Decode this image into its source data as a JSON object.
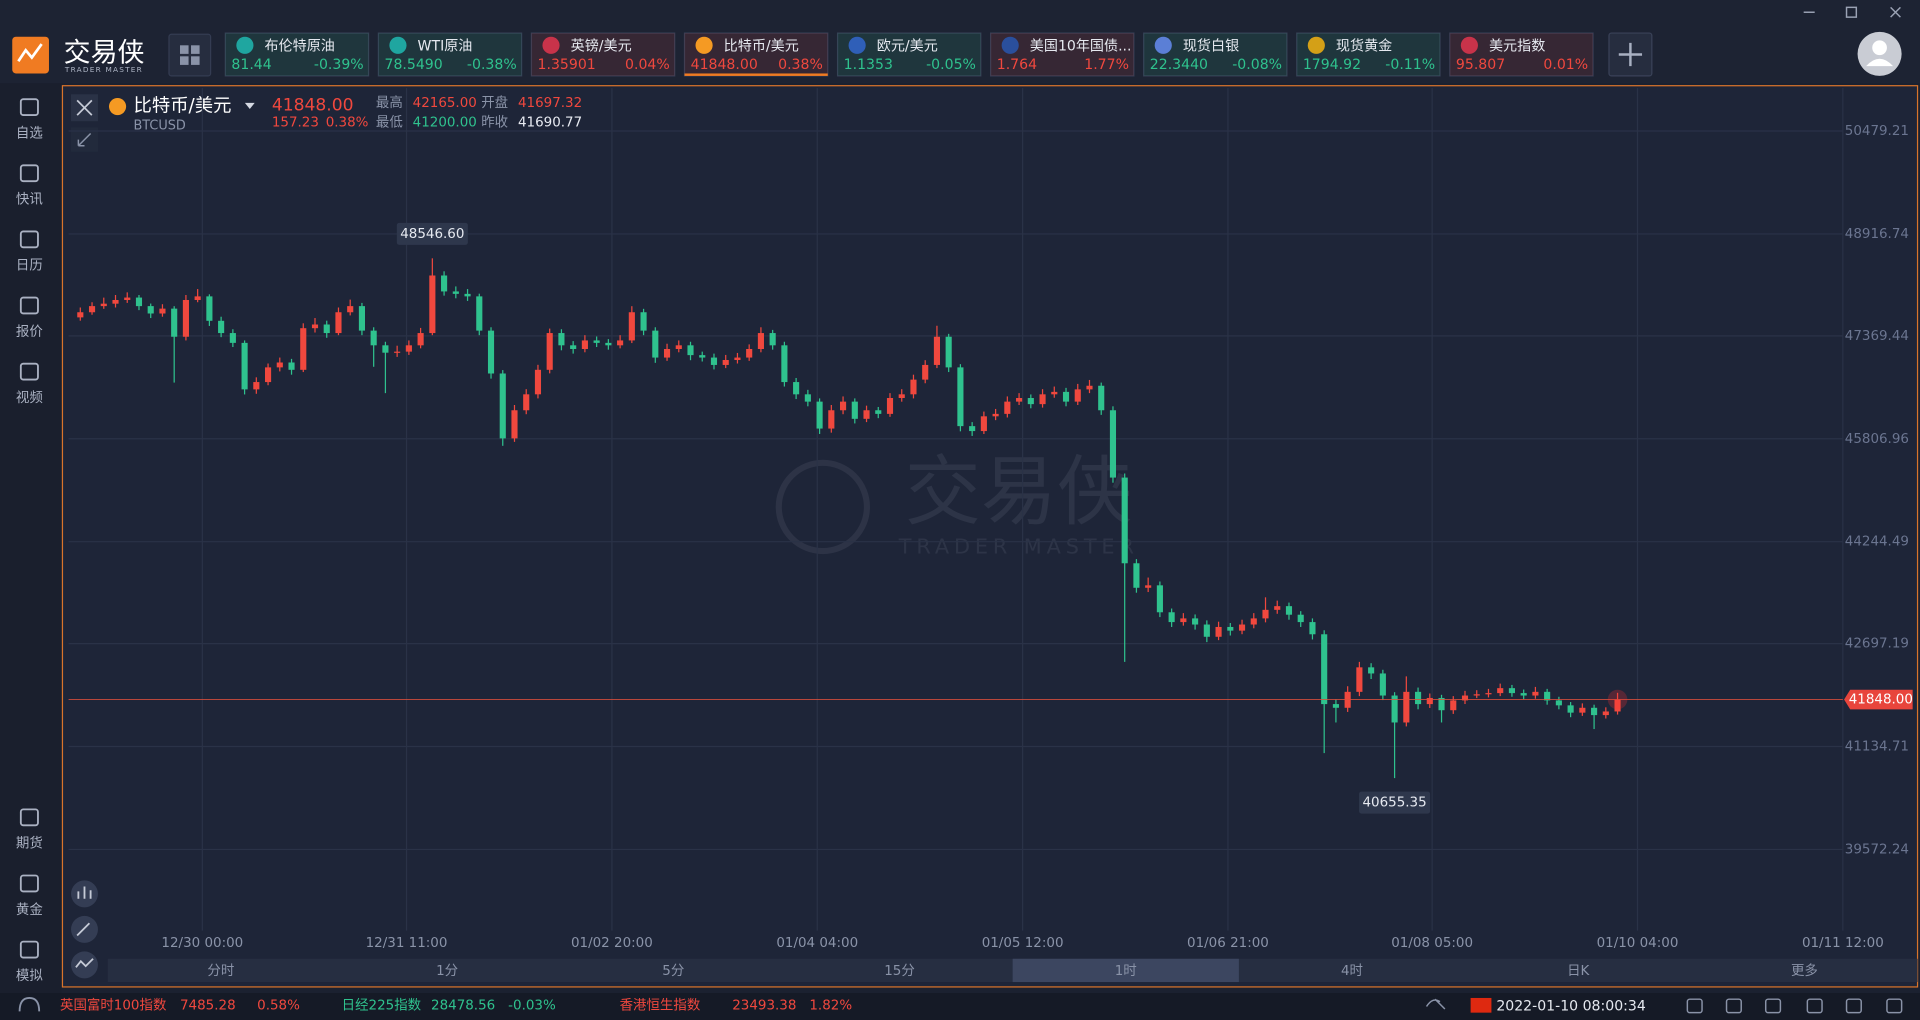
{
  "logo": {
    "title": "交易侠",
    "subtitle": "TRADER MASTER"
  },
  "tickers": [
    {
      "name": "布伦特原油",
      "price": "81.44",
      "change": "-0.39%",
      "color": "#2fc28e"
    },
    {
      "name": "WTI原油",
      "price": "78.5490",
      "change": "-0.38%",
      "color": "#2fc28e"
    },
    {
      "name": "英镑/美元",
      "price": "1.35901",
      "change": "0.04%",
      "color": "#f0483e"
    },
    {
      "name": "比特币/美元",
      "price": "41848.00",
      "change": "0.38%",
      "color": "#f0483e"
    },
    {
      "name": "欧元/美元",
      "price": "1.1353",
      "change": "-0.05%",
      "color": "#2fc28e"
    },
    {
      "name": "美国10年国债...",
      "price": "1.764",
      "change": "1.77%",
      "color": "#f0483e"
    },
    {
      "name": "现货白银",
      "price": "22.3440",
      "change": "-0.08%",
      "color": "#2fc28e"
    },
    {
      "name": "现货黄金",
      "price": "1794.92",
      "change": "-0.11%",
      "color": "#2fc28e"
    },
    {
      "name": "美元指数",
      "price": "95.807",
      "change": "0.01%",
      "color": "#f0483e"
    }
  ],
  "sidebar": {
    "top": [
      "自选",
      "快讯",
      "日历",
      "报价",
      "视频"
    ],
    "bottom": [
      "期货",
      "黄金",
      "模拟"
    ]
  },
  "instrument": {
    "name": "比特币/美元",
    "symbol": "BTCUSD",
    "price": "41848.00",
    "change": "157.23",
    "change_pct": "0.38%",
    "stats": [
      {
        "label": "最高",
        "value": "42165.00",
        "color": "#f0483e"
      },
      {
        "label": "开盘",
        "value": "41697.32",
        "color": "#f0483e"
      },
      {
        "label": "最低",
        "value": "41200.00",
        "color": "#2fc28e"
      },
      {
        "label": "昨收",
        "value": "41690.77",
        "color": "#e8ebf2"
      }
    ]
  },
  "chart_data": {
    "type": "candlestick",
    "grid": true,
    "up_color": "#f0483e",
    "down_color": "#2fc28e",
    "xlim": [
      -1,
      150.2
    ],
    "xticks": [
      {
        "value": 10.4,
        "label": "12/30 00:00"
      },
      {
        "value": 27.8,
        "label": "12/31 11:00"
      },
      {
        "value": 45.3,
        "label": "01/02 20:00"
      },
      {
        "value": 62.8,
        "label": "01/04 04:00"
      },
      {
        "value": 80.3,
        "label": "01/05 12:00"
      },
      {
        "value": 97.8,
        "label": "01/06 21:00"
      },
      {
        "value": 115.2,
        "label": "01/08 05:00"
      },
      {
        "value": 132.7,
        "label": "01/10 04:00"
      },
      {
        "value": 150.2,
        "label": "01/11 12:00"
      }
    ],
    "ylim": [
      38340,
      51130
    ],
    "yticks": [
      50479.21,
      48916.74,
      47369.44,
      45806.96,
      44244.49,
      42697.19,
      41134.71,
      39572.24
    ],
    "last_price": {
      "value": 41848,
      "label": "41848.00"
    },
    "annotations": [
      {
        "value": 48546.6,
        "label": "48546.60"
      },
      {
        "value": 40655.35,
        "label": "40655.35"
      }
    ],
    "watermark": {
      "title": "交易侠",
      "subtitle": "TRADER MASTER"
    },
    "ohlc": [
      [
        47650,
        47800,
        47600,
        47728
      ],
      [
        47728,
        47880,
        47690,
        47821
      ],
      [
        47821,
        47950,
        47780,
        47858
      ],
      [
        47858,
        47990,
        47800,
        47914
      ],
      [
        47914,
        48030,
        47870,
        47951
      ],
      [
        47951,
        47990,
        47760,
        47821
      ],
      [
        47821,
        47860,
        47640,
        47709
      ],
      [
        47709,
        47850,
        47660,
        47783
      ],
      [
        47783,
        47820,
        46660,
        47356
      ],
      [
        47356,
        47990,
        47300,
        47914
      ],
      [
        47914,
        48080,
        47880,
        47969
      ],
      [
        47969,
        48000,
        47520,
        47598
      ],
      [
        47598,
        47660,
        47350,
        47412
      ],
      [
        47412,
        47470,
        47200,
        47263
      ],
      [
        47263,
        47300,
        46480,
        46557
      ],
      [
        46557,
        46740,
        46490,
        46668
      ],
      [
        46668,
        46950,
        46620,
        46891
      ],
      [
        46891,
        47040,
        46830,
        46965
      ],
      [
        46965,
        47020,
        46780,
        46854
      ],
      [
        46854,
        47560,
        46820,
        47486
      ],
      [
        47486,
        47640,
        47420,
        47542
      ],
      [
        47542,
        47600,
        47340,
        47412
      ],
      [
        47412,
        47800,
        47380,
        47728
      ],
      [
        47728,
        47920,
        47680,
        47821
      ],
      [
        47821,
        47870,
        47380,
        47449
      ],
      [
        47449,
        47500,
        46900,
        47226
      ],
      [
        47226,
        47280,
        46500,
        47114
      ],
      [
        47114,
        47220,
        47050,
        47130
      ],
      [
        47130,
        47300,
        47080,
        47226
      ],
      [
        47226,
        47490,
        47180,
        47412
      ],
      [
        47412,
        48546.6,
        47380,
        48286
      ],
      [
        48286,
        48350,
        47980,
        48044
      ],
      [
        48044,
        48120,
        47940,
        48007
      ],
      [
        48007,
        48080,
        47900,
        47969
      ],
      [
        47969,
        48010,
        47380,
        47449
      ],
      [
        47449,
        47500,
        46720,
        46798
      ],
      [
        46798,
        46850,
        45700,
        45813
      ],
      [
        45813,
        46320,
        45760,
        46240
      ],
      [
        46240,
        46560,
        46180,
        46482
      ],
      [
        46482,
        46930,
        46420,
        46854
      ],
      [
        46854,
        47480,
        46800,
        47412
      ],
      [
        47412,
        47470,
        47150,
        47226
      ],
      [
        47226,
        47290,
        47100,
        47170
      ],
      [
        47170,
        47380,
        47120,
        47300
      ],
      [
        47300,
        47360,
        47200,
        47263
      ],
      [
        47263,
        47320,
        47160,
        47226
      ],
      [
        47226,
        47380,
        47180,
        47300
      ],
      [
        47300,
        47820,
        47260,
        47728
      ],
      [
        47728,
        47780,
        47380,
        47449
      ],
      [
        47449,
        47500,
        46960,
        47040
      ],
      [
        47040,
        47250,
        46990,
        47170
      ],
      [
        47170,
        47300,
        47120,
        47226
      ],
      [
        47226,
        47280,
        47000,
        47077
      ],
      [
        47077,
        47130,
        46980,
        47040
      ],
      [
        47040,
        47100,
        46860,
        46928
      ],
      [
        46928,
        47080,
        46880,
        47003
      ],
      [
        47003,
        47110,
        46950,
        47040
      ],
      [
        47040,
        47240,
        46990,
        47170
      ],
      [
        47170,
        47500,
        47120,
        47412
      ],
      [
        47412,
        47460,
        47160,
        47226
      ],
      [
        47226,
        47280,
        46600,
        46668
      ],
      [
        46668,
        46730,
        46410,
        46482
      ],
      [
        46482,
        46550,
        46300,
        46371
      ],
      [
        46371,
        46420,
        45880,
        45962
      ],
      [
        45962,
        46320,
        45900,
        46240
      ],
      [
        46240,
        46450,
        46180,
        46371
      ],
      [
        46371,
        46420,
        46040,
        46110
      ],
      [
        46110,
        46310,
        46060,
        46240
      ],
      [
        46240,
        46290,
        46120,
        46185
      ],
      [
        46185,
        46500,
        46140,
        46426
      ],
      [
        46426,
        46560,
        46370,
        46482
      ],
      [
        46482,
        46780,
        46420,
        46705
      ],
      [
        46705,
        47000,
        46650,
        46928
      ],
      [
        46928,
        47523,
        46880,
        47356
      ],
      [
        47356,
        47400,
        46820,
        46891
      ],
      [
        46891,
        46940,
        45920,
        45999
      ],
      [
        45999,
        46060,
        45850,
        45924
      ],
      [
        45924,
        46220,
        45880,
        46148
      ],
      [
        46148,
        46260,
        46090,
        46185
      ],
      [
        46185,
        46450,
        46130,
        46371
      ],
      [
        46371,
        46500,
        46320,
        46426
      ],
      [
        46426,
        46480,
        46270,
        46333
      ],
      [
        46333,
        46560,
        46280,
        46482
      ],
      [
        46482,
        46600,
        46430,
        46519
      ],
      [
        46519,
        46580,
        46300,
        46371
      ],
      [
        46371,
        46640,
        46320,
        46557
      ],
      [
        46557,
        46700,
        46500,
        46612
      ],
      [
        46612,
        46660,
        46170,
        46240
      ],
      [
        46240,
        46300,
        45140,
        45218
      ],
      [
        45218,
        45280,
        42420,
        43917
      ],
      [
        43917,
        43980,
        43470,
        43545
      ],
      [
        43545,
        43700,
        43480,
        43582
      ],
      [
        43582,
        43640,
        43100,
        43173
      ],
      [
        43173,
        43230,
        42950,
        43024
      ],
      [
        43024,
        43160,
        42970,
        43080
      ],
      [
        43080,
        43140,
        42910,
        42987
      ],
      [
        42987,
        43050,
        42720,
        42801
      ],
      [
        42801,
        43030,
        42750,
        42950
      ],
      [
        42950,
        43010,
        42820,
        42894
      ],
      [
        42894,
        43060,
        42840,
        42987
      ],
      [
        42987,
        43160,
        42930,
        43080
      ],
      [
        43080,
        43400,
        43020,
        43210
      ],
      [
        43210,
        43350,
        43150,
        43266
      ],
      [
        43266,
        43320,
        43060,
        43136
      ],
      [
        43136,
        43190,
        42950,
        43024
      ],
      [
        43024,
        43080,
        42760,
        42839
      ],
      [
        42839,
        42900,
        41035,
        41779
      ],
      [
        41779,
        41850,
        41500,
        41723
      ],
      [
        41723,
        42050,
        41660,
        41965
      ],
      [
        41965,
        42420,
        41900,
        42337
      ],
      [
        42337,
        42400,
        42160,
        42244
      ],
      [
        42244,
        42300,
        41840,
        41909
      ],
      [
        41909,
        41960,
        40655.35,
        41500
      ],
      [
        41500,
        42200,
        41440,
        41965
      ],
      [
        41965,
        42030,
        41700,
        41779
      ],
      [
        41779,
        41940,
        41720,
        41872
      ],
      [
        41872,
        41920,
        41500,
        41686
      ],
      [
        41686,
        41900,
        41630,
        41835
      ],
      [
        41835,
        41980,
        41780,
        41909
      ],
      [
        41909,
        41990,
        41870,
        41928
      ],
      [
        41928,
        42010,
        41880,
        41946
      ],
      [
        41946,
        42090,
        41900,
        42021
      ],
      [
        42021,
        42070,
        41890,
        41946
      ],
      [
        41946,
        42000,
        41850,
        41909
      ],
      [
        41909,
        42040,
        41860,
        41965
      ],
      [
        41965,
        42010,
        41770,
        41835
      ],
      [
        41835,
        41890,
        41700,
        41760
      ],
      [
        41760,
        41810,
        41580,
        41649
      ],
      [
        41649,
        41790,
        41600,
        41723
      ],
      [
        41723,
        41770,
        41400,
        41612
      ],
      [
        41612,
        41730,
        41560,
        41667
      ],
      [
        41667,
        41950,
        41620,
        41848
      ]
    ]
  },
  "timeframes": {
    "items": [
      "分时",
      "1分",
      "5分",
      "15分",
      "1时",
      "4时",
      "日K",
      "更多"
    ],
    "selected": 4
  },
  "status_bar": {
    "indices": [
      {
        "name": "英国富时100指数",
        "value": "7485.28",
        "change": "0.58%",
        "color": "#f0483e"
      },
      {
        "name": "日经225指数",
        "value": "28478.56",
        "change": "-0.03%",
        "color": "#2fc28e"
      },
      {
        "name": "香港恒生指数",
        "value": "23493.38",
        "change": "1.82%",
        "color": "#f0483e"
      }
    ],
    "datetime": "2022-01-10 08:00:34"
  }
}
